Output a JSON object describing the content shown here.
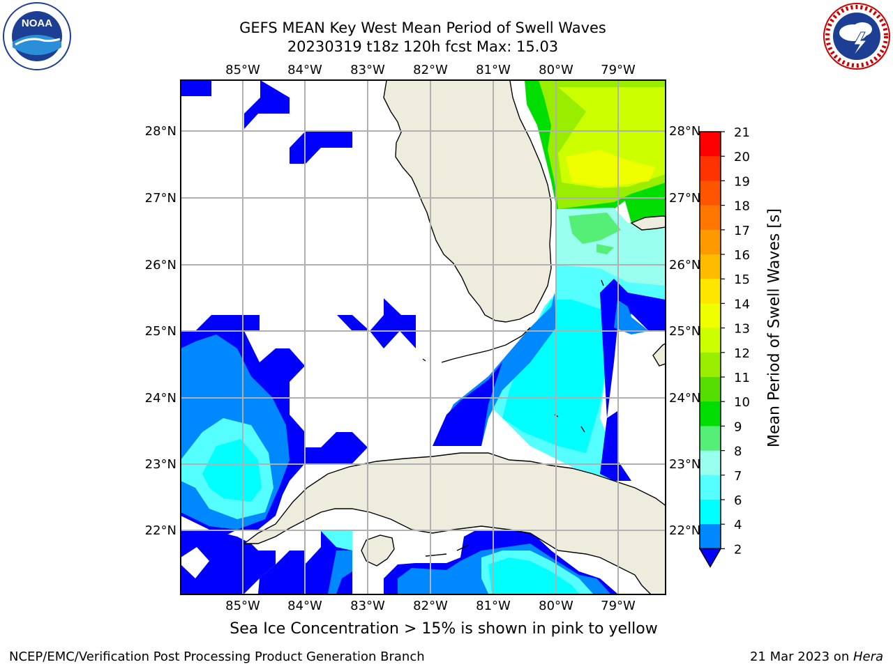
{
  "title": {
    "line1": "GEFS MEAN Key West Mean Period of Swell Waves",
    "line2": "20230319 t18z 120h fcst   Max: 15.03"
  },
  "logos": {
    "noaa": {
      "text": "NOAA",
      "ring_text": "NATIONAL OCEANIC AND ATMOSPHERIC ADMINISTRATION · U.S. DEPARTMENT OF COMMERCE"
    },
    "nws": {
      "ring_text": "NATIONAL WEATHER SERVICE"
    }
  },
  "map": {
    "lon_ticks": [
      "85°W",
      "84°W",
      "83°W",
      "82°W",
      "81°W",
      "80°W",
      "79°W"
    ],
    "lat_ticks": [
      "28°N",
      "27°N",
      "26°N",
      "25°N",
      "24°N",
      "23°N",
      "22°N"
    ],
    "land_color": "#eeeddd",
    "grid_color": "#b0b0b0"
  },
  "colorbar": {
    "label": "Mean Period of Swell Waves [s]",
    "ticks": [
      "21",
      "20",
      "19",
      "18",
      "17",
      "16",
      "15",
      "14",
      "13",
      "12",
      "11",
      "10",
      "9",
      "8",
      "7",
      "6",
      "4",
      "2"
    ],
    "colors": [
      "#ff0000",
      "#ff3300",
      "#ff5500",
      "#ff7700",
      "#ff9900",
      "#ffbb00",
      "#ffe600",
      "#f0ff00",
      "#ccff00",
      "#99ee00",
      "#55dd00",
      "#00dd00",
      "#55ee77",
      "#99ffee",
      "#55ffff",
      "#00ffff",
      "#0088ff",
      "#0000ff"
    ]
  },
  "caption": "Sea Ice Concentration > 15% is shown in pink to yellow",
  "footer": {
    "left": "NCEP/EMC/Verification Post Processing Product Generation Branch",
    "right_date": "21 Mar 2023 on ",
    "right_machine": "Hera"
  }
}
